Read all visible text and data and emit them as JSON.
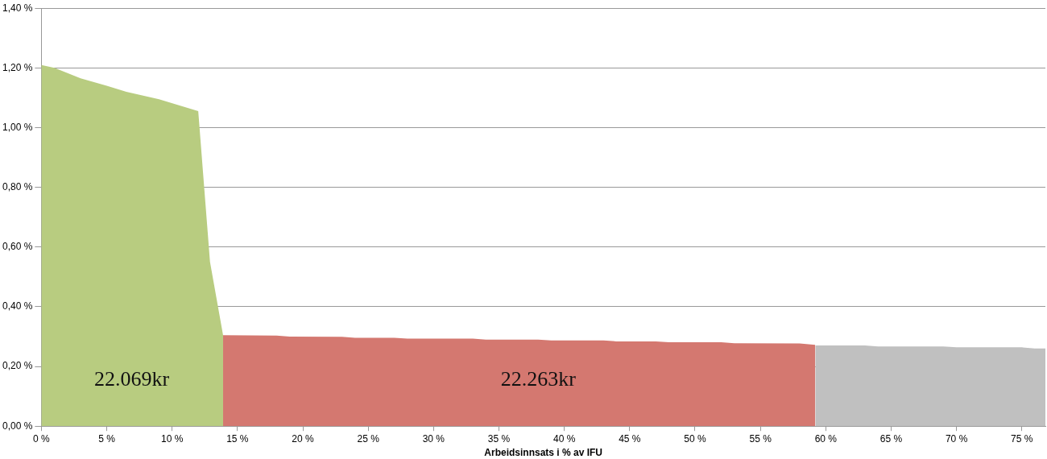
{
  "chart_data": {
    "type": "area",
    "xlabel": "Arbeidsinnsats i % av IFU",
    "xlim": [
      0,
      76.8
    ],
    "xticks": [
      {
        "value": 0,
        "label": "0 %"
      },
      {
        "value": 5,
        "label": "5 %"
      },
      {
        "value": 10,
        "label": "10 %"
      },
      {
        "value": 15,
        "label": "15 %"
      },
      {
        "value": 20,
        "label": "20 %"
      },
      {
        "value": 25,
        "label": "25 %"
      },
      {
        "value": 30,
        "label": "30 %"
      },
      {
        "value": 35,
        "label": "35 %"
      },
      {
        "value": 40,
        "label": "40 %"
      },
      {
        "value": 45,
        "label": "45 %"
      },
      {
        "value": 50,
        "label": "50 %"
      },
      {
        "value": 55,
        "label": "55 %"
      },
      {
        "value": 60,
        "label": "60 %"
      },
      {
        "value": 65,
        "label": "65 %"
      },
      {
        "value": 70,
        "label": "70 %"
      },
      {
        "value": 75,
        "label": "75 %"
      }
    ],
    "ylim": [
      0,
      1.4
    ],
    "yticks": [
      {
        "value": 0,
        "label": "0,00 %"
      },
      {
        "value": 0.2,
        "label": "0,20 %"
      },
      {
        "value": 0.4,
        "label": "0,40 %"
      },
      {
        "value": 0.6,
        "label": "0,60 %"
      },
      {
        "value": 0.8,
        "label": "0,80 %"
      },
      {
        "value": 1.0,
        "label": "1,00 %"
      },
      {
        "value": 1.2,
        "label": "1,20 %"
      },
      {
        "value": 1.4,
        "label": "1,40 %"
      }
    ],
    "grid": "y",
    "legend": false,
    "series": [
      {
        "color": "#b8cc80",
        "x": [
          0,
          1,
          3,
          5,
          6.5,
          9,
          12,
          12.9,
          13.9
        ],
        "values": [
          1.21,
          1.2,
          1.165,
          1.14,
          1.12,
          1.095,
          1.055,
          0.55,
          0.305
        ]
      },
      {
        "color": "#d47870",
        "x": [
          13.9,
          18,
          19,
          23,
          24,
          27,
          28,
          33,
          34,
          38,
          39,
          43,
          44,
          47,
          48,
          52,
          53,
          58,
          59.2
        ],
        "values": [
          0.305,
          0.303,
          0.3,
          0.299,
          0.296,
          0.296,
          0.293,
          0.293,
          0.29,
          0.29,
          0.287,
          0.287,
          0.284,
          0.284,
          0.281,
          0.281,
          0.278,
          0.277,
          0.272
        ]
      },
      {
        "color": "#c0c0c0",
        "x": [
          59.2,
          63,
          64,
          69,
          70,
          75,
          76,
          76.8
        ],
        "values": [
          0.27,
          0.27,
          0.267,
          0.267,
          0.264,
          0.264,
          0.26,
          0.26
        ]
      }
    ],
    "annotations": [
      "22.069kr",
      "22.263kr"
    ]
  }
}
